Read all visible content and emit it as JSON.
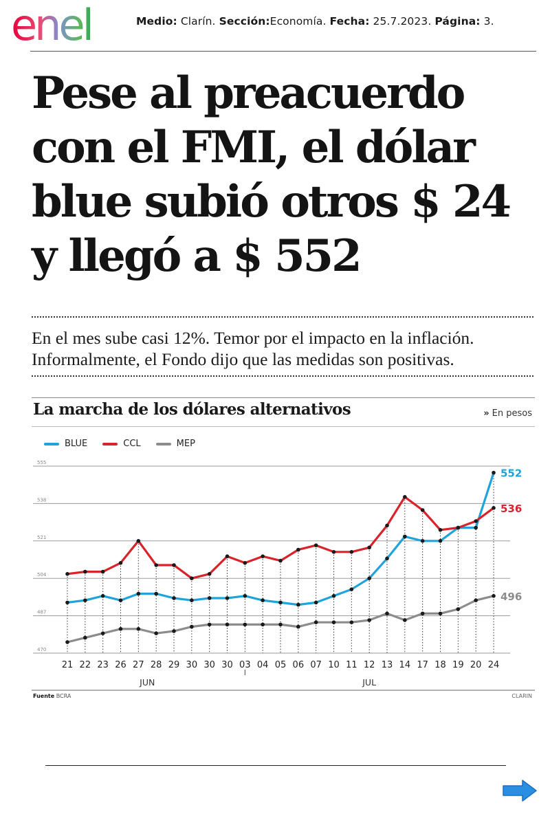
{
  "header": {
    "logo_text": "enel",
    "medio_label": "Medio:",
    "medio": "Clarín.",
    "seccion_label": "Sección:",
    "seccion": "Economía.",
    "fecha_label": "Fecha:",
    "fecha": "25.7.2023.",
    "pagina_label": "Página:",
    "pagina": "3."
  },
  "article": {
    "headline": "Pese al preacuerdo con el FMI, el dólar blue subió otros $ 24 y llegó a $ 552",
    "subhead_line1": "En el mes sube casi 12%. Temor por el impacto en la inflación.",
    "subhead_line2": "Informalmente, el Fondo dijo que las medidas son positivas."
  },
  "chart_meta": {
    "units_chevron": "»",
    "units": "En pesos",
    "source_label": "Fuente",
    "source": "BCRA",
    "credit": "CLARIN"
  },
  "chart_data": {
    "type": "line",
    "title": "La marcha de los dólares alternativos",
    "categories": [
      "21",
      "22",
      "23",
      "26",
      "27",
      "28",
      "29",
      "30",
      "30",
      "30",
      "03",
      "04",
      "05",
      "06",
      "07",
      "10",
      "11",
      "12",
      "13",
      "14",
      "17",
      "18",
      "19",
      "20",
      "24"
    ],
    "month_labels": [
      {
        "label": "JUN",
        "index_range": [
          0,
          9
        ]
      },
      {
        "label": "JUL",
        "index_range": [
          10,
          24
        ]
      }
    ],
    "yticks": [
      470,
      487,
      504,
      521,
      538,
      555
    ],
    "ylim": [
      470,
      555
    ],
    "grid": "horizontal solid, vertical dotted",
    "legend": "top-left",
    "series": [
      {
        "name": "BLUE",
        "color": "#1ea3dc",
        "values": [
          493,
          494,
          496,
          494,
          497,
          497,
          495,
          494,
          495,
          495,
          496,
          494,
          493,
          492,
          493,
          496,
          499,
          504,
          513,
          523,
          521,
          521,
          527,
          527,
          552
        ],
        "end_label": "552"
      },
      {
        "name": "CCL",
        "color": "#d8232a",
        "values": [
          506,
          507,
          507,
          511,
          521,
          510,
          510,
          504,
          506,
          514,
          511,
          514,
          512,
          517,
          519,
          516,
          516,
          518,
          528,
          541,
          535,
          526,
          527,
          530,
          536
        ],
        "end_label": "536"
      },
      {
        "name": "MEP",
        "color": "#8c8c8c",
        "values": [
          475,
          477,
          479,
          481,
          481,
          479,
          480,
          482,
          483,
          483,
          483,
          483,
          483,
          482,
          484,
          484,
          484,
          485,
          488,
          485,
          488,
          488,
          490,
          494,
          496
        ],
        "end_label": "496"
      }
    ]
  }
}
